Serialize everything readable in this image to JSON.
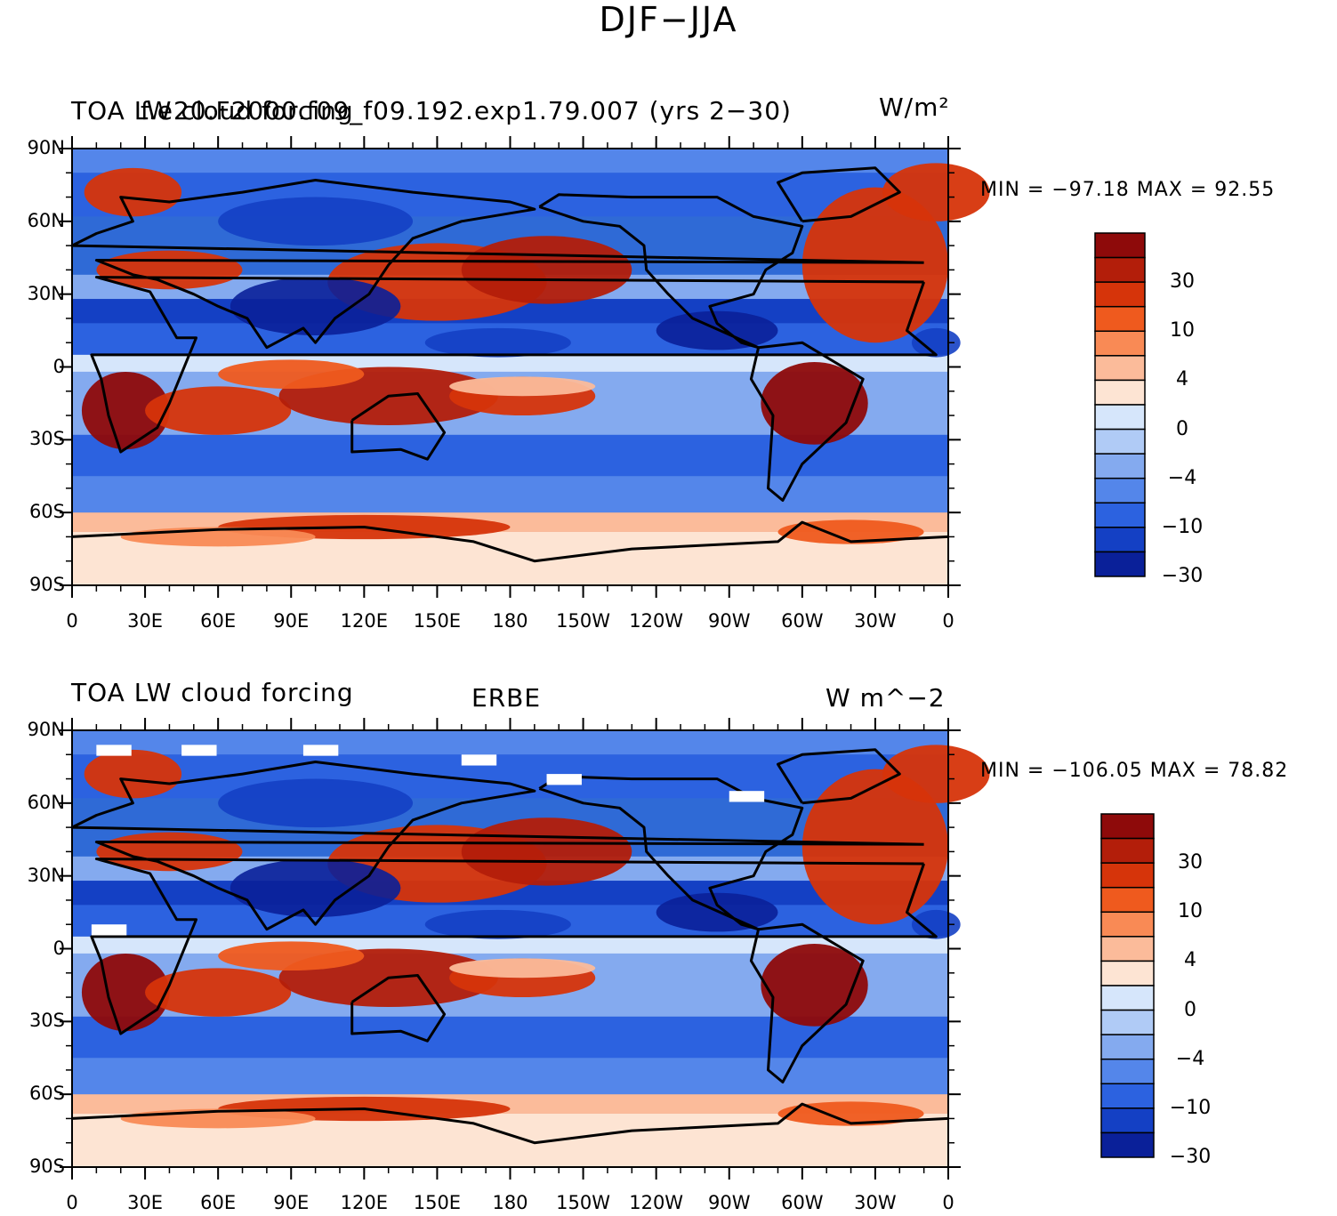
{
  "figure_title": "DJF−JJA",
  "panels": [
    {
      "left_title": "TOA LW cloud forcing",
      "center_title": "f.e20.F2000.f09_f09.192.exp1.79.007 (yrs 2−30)",
      "right_title": "W/m²",
      "stats": "MIN = −97.18  MAX =   92.55"
    },
    {
      "left_title": "TOA LW cloud forcing",
      "center_title": "ERBE",
      "right_title": "W m^−2",
      "stats": "MIN = −106.05  MAX =   78.82"
    }
  ],
  "lat_labels": [
    "90N",
    "60N",
    "30N",
    "0",
    "30S",
    "60S",
    "90S"
  ],
  "lon_labels": [
    "0",
    "30E",
    "60E",
    "90E",
    "120E",
    "150E",
    "180",
    "150W",
    "120W",
    "90W",
    "60W",
    "30W",
    "0"
  ],
  "colorbar": {
    "labels": [
      "30",
      "10",
      "4",
      "0",
      "−4",
      "−10",
      "−30"
    ],
    "colors": [
      "#8e0a0a",
      "#b31e0a",
      "#d6340a",
      "#ef5a1e",
      "#f98a55",
      "#fbbb9a",
      "#fde4d3",
      "#d6e6fb",
      "#b0cbf6",
      "#84aaef",
      "#5486ea",
      "#2c62e0",
      "#1440c4",
      "#0a2099"
    ]
  },
  "colors": {
    "ocean_blue": "#2f6ad6",
    "land_red": "#dc3c10",
    "pale": "#dfe8f8"
  }
}
